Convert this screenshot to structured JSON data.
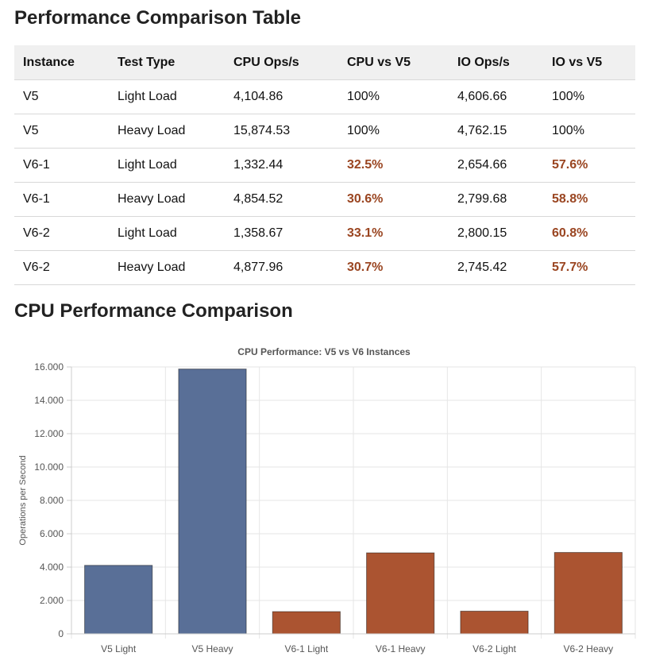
{
  "table_section": {
    "heading": "Performance Comparison Table",
    "columns": [
      "Instance",
      "Test Type",
      "CPU Ops/s",
      "CPU vs V5",
      "IO Ops/s",
      "IO vs V5"
    ],
    "rows": [
      [
        "V5",
        "Light Load",
        "4,104.86",
        "100%",
        "4,606.66",
        "100%"
      ],
      [
        "V5",
        "Heavy Load",
        "15,874.53",
        "100%",
        "4,762.15",
        "100%"
      ],
      [
        "V6-1",
        "Light Load",
        "1,332.44",
        "32.5%",
        "2,654.66",
        "57.6%"
      ],
      [
        "V6-1",
        "Heavy Load",
        "4,854.52",
        "30.6%",
        "2,799.68",
        "58.8%"
      ],
      [
        "V6-2",
        "Light Load",
        "1,358.67",
        "33.1%",
        "2,800.15",
        "60.8%"
      ],
      [
        "V6-2",
        "Heavy Load",
        "4,877.96",
        "30.7%",
        "2,745.42",
        "57.7%"
      ]
    ],
    "highlight_color": "#9a4521"
  },
  "chart_section": {
    "heading": "CPU Performance Comparison"
  },
  "chart_data": {
    "type": "bar",
    "title": "CPU Performance: V5 vs V6 Instances",
    "xlabel": "",
    "ylabel": "Operations per Second",
    "categories": [
      "V5 Light",
      "V5 Heavy",
      "V6-1 Light",
      "V6-1 Heavy",
      "V6-2 Light",
      "V6-2 Heavy"
    ],
    "values": [
      4104.86,
      15874.53,
      1332.44,
      4854.52,
      1358.67,
      4877.96
    ],
    "bar_colors": [
      "#596f97",
      "#596f97",
      "#ab5431",
      "#ab5431",
      "#ab5431",
      "#ab5431"
    ],
    "ylim": [
      0,
      16000
    ],
    "yticks": [
      0,
      2000,
      4000,
      6000,
      8000,
      10000,
      12000,
      14000,
      16000
    ],
    "ytick_labels": [
      "0",
      "2.000",
      "4.000",
      "6.000",
      "8.000",
      "10.000",
      "12.000",
      "14.000",
      "16.000"
    ],
    "grid": true
  }
}
